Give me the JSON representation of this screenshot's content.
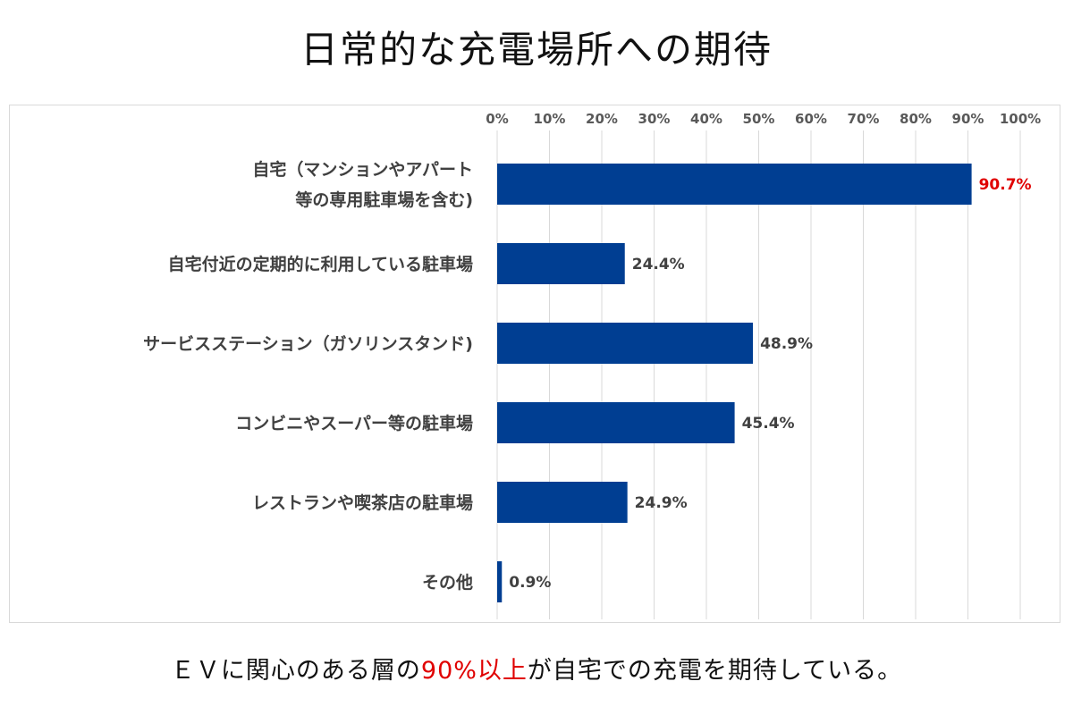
{
  "title": "日常的な充電場所への期待",
  "caption": {
    "before": "ＥＶに関心のある層の",
    "highlight": "90%以上",
    "after": "が自宅での充電を期待している。"
  },
  "colors": {
    "bar": "#003e92",
    "highlight_text": "#e00000",
    "label_text": "#404040",
    "grid": "#d9d9d9"
  },
  "chart_data": {
    "type": "bar",
    "orientation": "horizontal",
    "title": "",
    "xlabel": "",
    "ylabel": "",
    "xlim": [
      0,
      100
    ],
    "x_ticks": [
      "0%",
      "10%",
      "20%",
      "30%",
      "40%",
      "50%",
      "60%",
      "70%",
      "80%",
      "90%",
      "100%"
    ],
    "x_axis_position": "top",
    "grid": true,
    "categories": [
      [
        "自宅（マンションやアパート",
        "等の専用駐車場を含む)"
      ],
      [
        "自宅付近の定期的に利用している駐車場"
      ],
      [
        "サービスステーション（ガソリンスタンド)"
      ],
      [
        "コンビニやスーパー等の駐車場"
      ],
      [
        "レストランや喫茶店の駐車場"
      ],
      [
        "その他"
      ]
    ],
    "values": [
      90.7,
      24.4,
      48.9,
      45.4,
      24.9,
      0.9
    ],
    "value_labels": [
      "90.7%",
      "24.4%",
      "48.9%",
      "45.4%",
      "24.9%",
      "0.9%"
    ],
    "highlighted_index": 0
  }
}
